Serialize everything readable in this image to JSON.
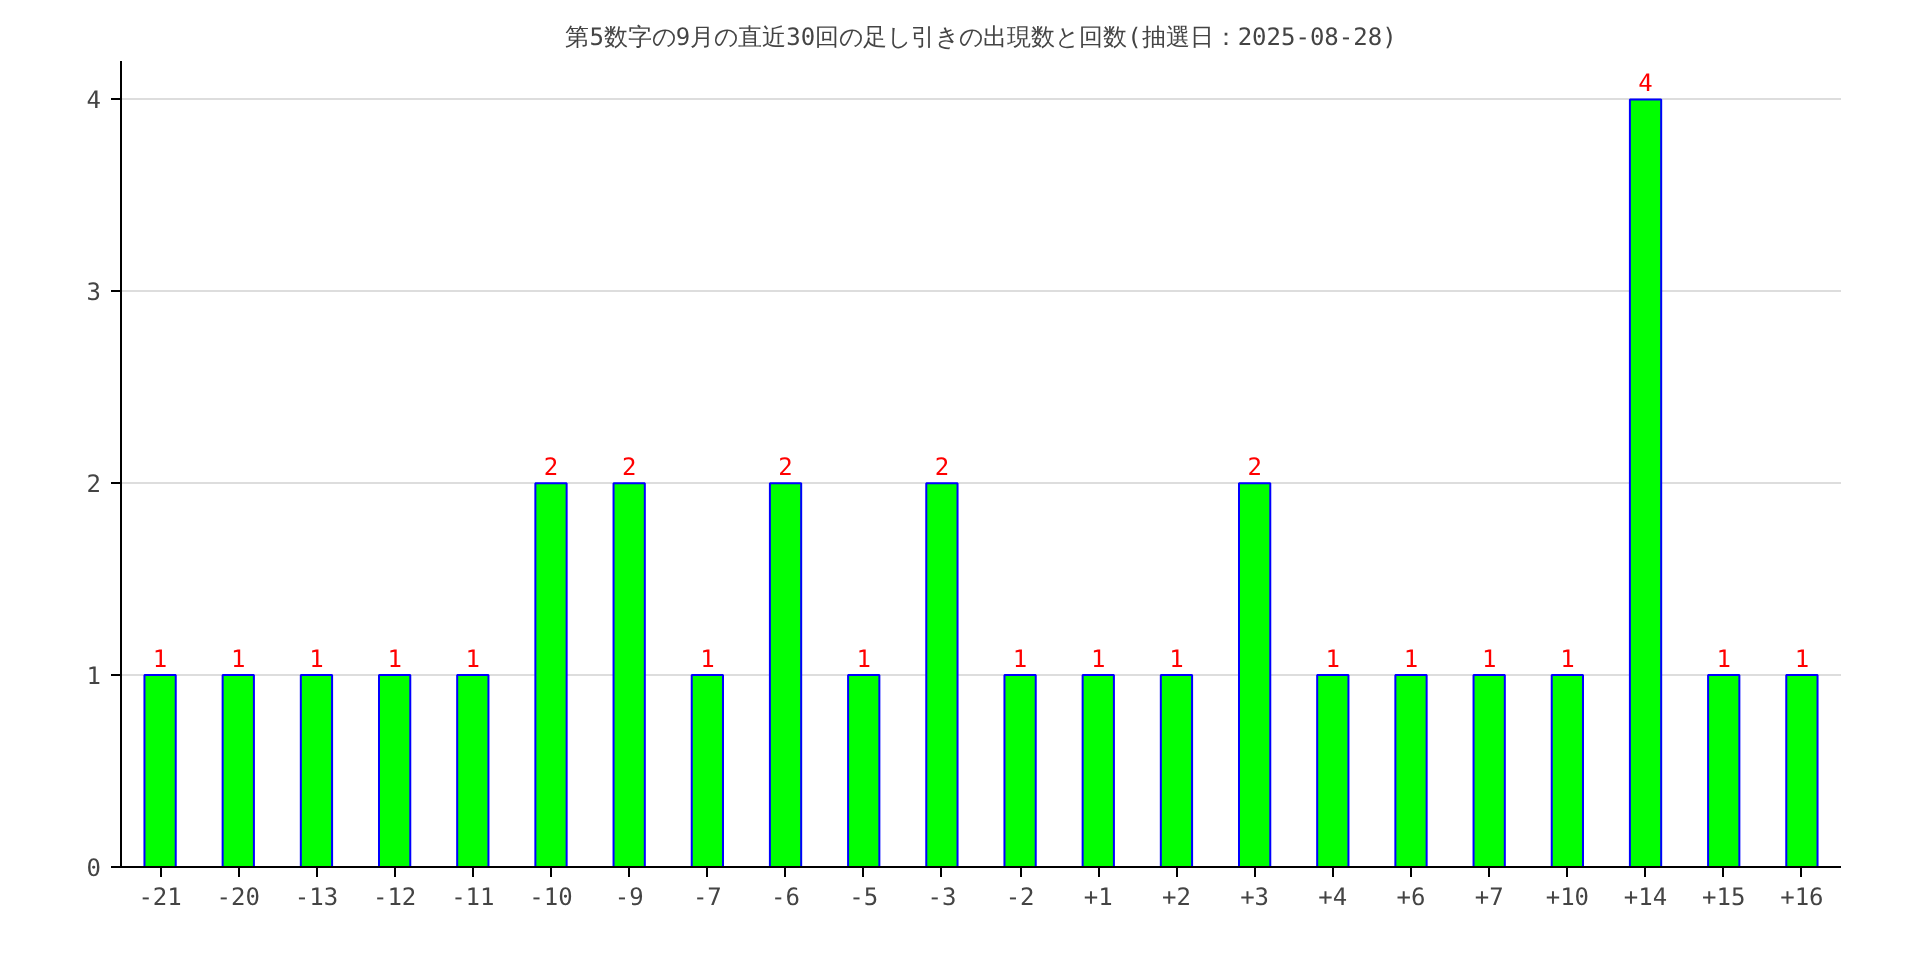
{
  "chart_data": {
    "type": "bar",
    "title": "第5数字の9月の直近30回の足し引きの出現数と回数(抽選日：2025-08-28)",
    "categories": [
      "-21",
      "-20",
      "-13",
      "-12",
      "-11",
      "-10",
      "-9",
      "-7",
      "-6",
      "-5",
      "-3",
      "-2",
      "+1",
      "+2",
      "+3",
      "+4",
      "+6",
      "+7",
      "+10",
      "+14",
      "+15",
      "+16"
    ],
    "series": [
      {
        "color": "#00ff00",
        "values": [
          1,
          1,
          1,
          1,
          1,
          2,
          2,
          1,
          2,
          1,
          2,
          1,
          1,
          1,
          2,
          1,
          1,
          1,
          1,
          4,
          1,
          1
        ]
      }
    ],
    "ylim": [
      0,
      4.2
    ],
    "yticks": [
      0,
      1,
      2,
      3,
      4
    ],
    "grid": "y",
    "data_labels": true
  }
}
